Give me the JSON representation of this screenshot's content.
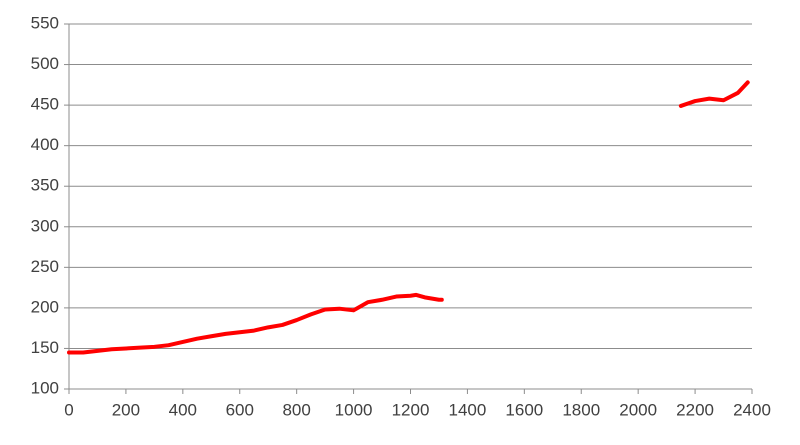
{
  "chart_data": {
    "type": "line",
    "x": [
      0,
      50,
      100,
      150,
      200,
      250,
      300,
      350,
      400,
      450,
      500,
      550,
      600,
      650,
      700,
      750,
      800,
      850,
      900,
      950,
      1000,
      1050,
      1100,
      1150,
      1200,
      1220,
      1250,
      1300,
      1310,
      1700,
      2150,
      2175,
      2200,
      2250,
      2300,
      2350,
      2385
    ],
    "series": [
      {
        "color": "#ff0000",
        "values": [
          145,
          145,
          147,
          149,
          150,
          151,
          152,
          154,
          158,
          162,
          165,
          168,
          170,
          172,
          176,
          179,
          185,
          192,
          198,
          199,
          197,
          207,
          210,
          214,
          215,
          216,
          213,
          210,
          210,
          null,
          449,
          452,
          455,
          458,
          456,
          465,
          478
        ]
      }
    ],
    "xlim": [
      0,
      2400
    ],
    "xticks": [
      0,
      200,
      400,
      600,
      800,
      1000,
      1200,
      1400,
      1600,
      1800,
      2000,
      2200,
      2400
    ],
    "ylim": [
      100,
      550
    ],
    "yticks": [
      100,
      150,
      200,
      250,
      300,
      350,
      400,
      450,
      500,
      550
    ],
    "grid": true
  }
}
